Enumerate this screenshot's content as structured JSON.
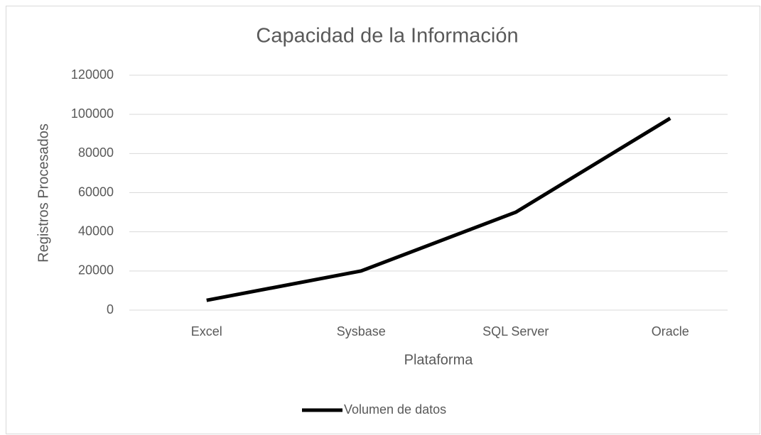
{
  "chart_data": {
    "type": "line",
    "title": "Capacidad de la Información",
    "x_label": "Plataforma",
    "y_label": "Registros Procesados",
    "categories": [
      "Excel",
      "Sysbase",
      "SQL Server",
      "Oracle"
    ],
    "series": [
      {
        "name": "Volumen de datos",
        "color": "#000000",
        "values": [
          5000,
          20000,
          50000,
          98000
        ]
      }
    ],
    "ylim": [
      0,
      120000
    ],
    "yticks": [
      0,
      20000,
      40000,
      60000,
      80000,
      100000,
      120000
    ],
    "grid": true,
    "legend": "bottom"
  }
}
